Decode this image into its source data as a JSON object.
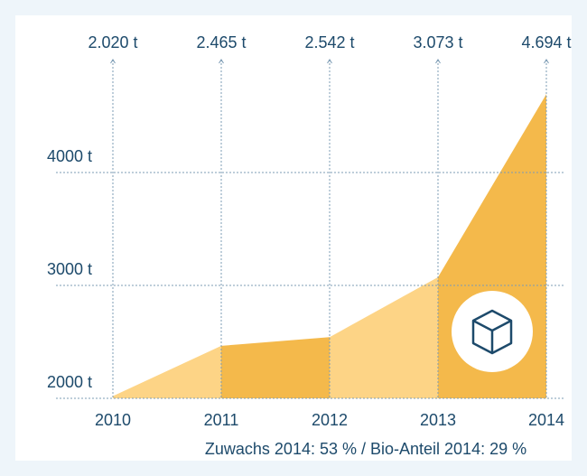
{
  "chart_data": {
    "type": "area",
    "categories": [
      "2010",
      "2011",
      "2012",
      "2013",
      "2014"
    ],
    "values": [
      2020,
      2465,
      2542,
      3073,
      4694
    ],
    "value_labels": [
      "2.020 t",
      "2.465 t",
      "2.542 t",
      "3.073 t",
      "4.694 t"
    ],
    "colors": [
      "#fdd486",
      "#f4b94b"
    ],
    "ylim": [
      2000,
      5000
    ],
    "yticks": [
      {
        "value": 2000,
        "label": "2000 t"
      },
      {
        "value": 3000,
        "label": "3000 t"
      },
      {
        "value": 4000,
        "label": "4000 t"
      }
    ],
    "grid": true,
    "annotation": "Zuwachs 2014: 53 % / Bio-Anteil 2014: 29 %"
  }
}
